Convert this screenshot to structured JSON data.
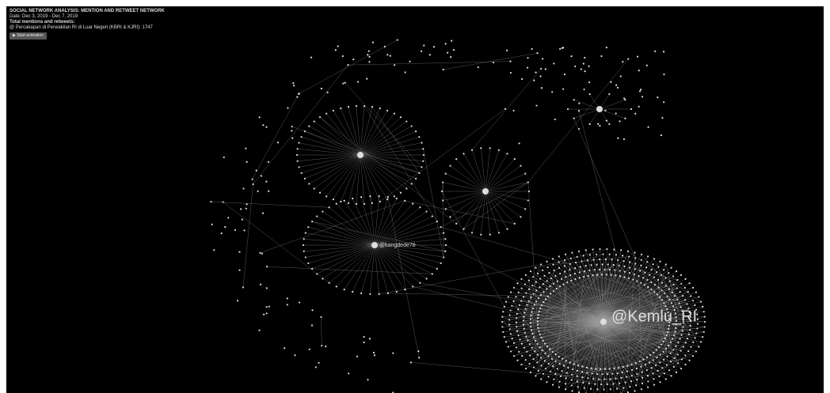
{
  "header": {
    "title": "SOCIAL NETWORK ANALYSIS: MENTION AND RETWEET NETWORK",
    "date": "Date: Dec 3, 2019 - Dec 7, 2019",
    "total_label": "Total mentions and retweets:",
    "total_line": "@ Percakapan di Perwakilan RI di Luar Negeri (KBRI & KJRI): 1747",
    "button": "▶ Start animation"
  },
  "nodes": [
    {
      "label": "@Kemlu_RI"
    },
    {
      "label": "@kangdede78"
    }
  ]
}
